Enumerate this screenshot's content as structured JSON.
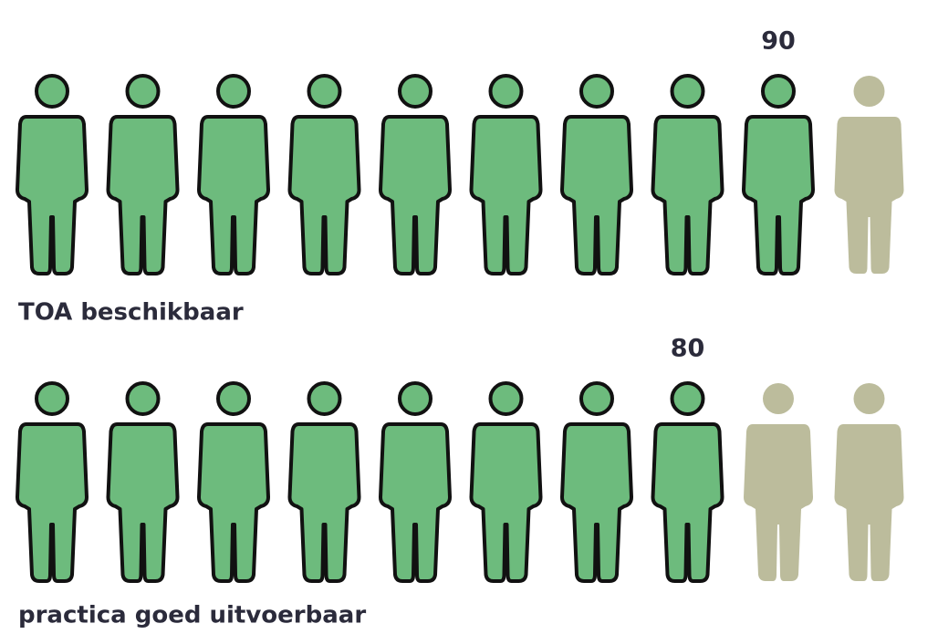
{
  "chart_data": {
    "type": "pictogram",
    "categories": [
      "TOA beschikbaar",
      "practica goed uitvoerbaar"
    ],
    "values": [
      90,
      80
    ],
    "icons": 10,
    "icon_value": 10,
    "color": "#6dbb7d",
    "empty_color": "#bcbc9c"
  }
}
